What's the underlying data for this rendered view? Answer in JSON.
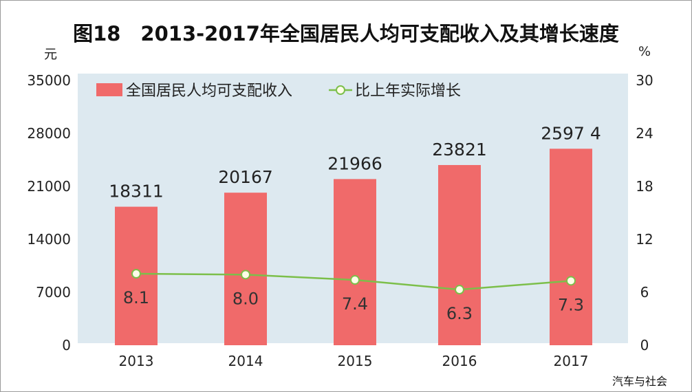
{
  "chart_data": {
    "type": "bar",
    "title": "图18　2013-2017年全国居民人均可支配收入及其增长速度",
    "y_left_unit": "元",
    "y_right_unit": "%",
    "categories": [
      "2013",
      "2014",
      "2015",
      "2016",
      "2017"
    ],
    "series": [
      {
        "name": "全国居民人均可支配收入",
        "type": "bar",
        "axis": "left",
        "values": [
          18311,
          20167,
          21966,
          23821,
          25974
        ],
        "labels": [
          "18311",
          "20167",
          "21966",
          "23821",
          "2597 4"
        ]
      },
      {
        "name": "比上年实际增长",
        "type": "line",
        "axis": "right",
        "values": [
          8.1,
          8.0,
          7.4,
          6.3,
          7.3
        ],
        "labels": [
          "8.1",
          "8.0",
          "7.4",
          "6.3",
          "7.3"
        ]
      }
    ],
    "y_left_ticks": [
      "0",
      "7000",
      "14000",
      "21000",
      "28000",
      "35000"
    ],
    "y_left_lim": [
      0,
      35000
    ],
    "y_right_ticks": [
      "0",
      "6",
      "12",
      "18",
      "24",
      "30"
    ],
    "y_right_lim": [
      0,
      30
    ],
    "legend_position": "top-left",
    "grid": false,
    "colors": {
      "bar": "#f06a6a",
      "line": "#7cbf4a",
      "marker_fill": "#fffde8",
      "plot_bg": "#dde9f0"
    }
  },
  "watermark": "汽车与社会"
}
